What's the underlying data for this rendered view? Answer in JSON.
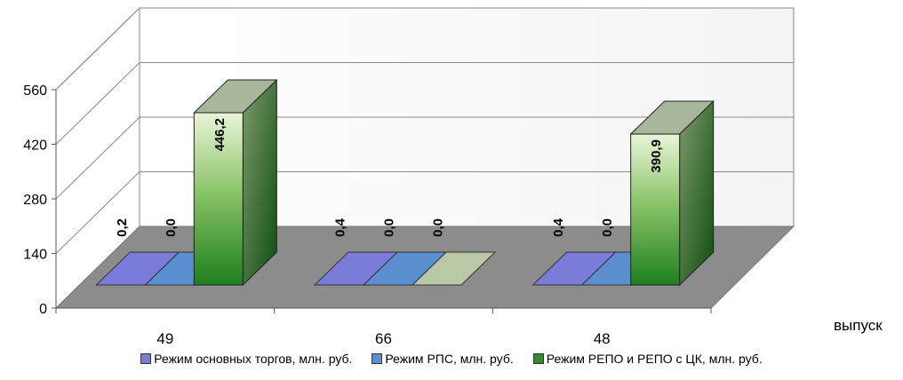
{
  "chart_data": {
    "type": "bar",
    "three_d": true,
    "categories": [
      "49",
      "66",
      "48"
    ],
    "series": [
      {
        "name": "Режим основных торгов, млн. руб.",
        "values": [
          0.2,
          0.4,
          0.4
        ],
        "labels": [
          "0,2",
          "0,4",
          "0,4"
        ],
        "color": "#7b7bd9"
      },
      {
        "name": "Режим РПС, млн. руб.",
        "values": [
          0.0,
          0.0,
          0.0
        ],
        "labels": [
          "0,0",
          "0,0",
          "0,0"
        ],
        "color": "#5b8fd0"
      },
      {
        "name": "Режим РЕПО и РЕПО с ЦК, млн. руб.",
        "values": [
          446.2,
          0.0,
          390.9
        ],
        "labels": [
          "446,2",
          "0,0",
          "390,9"
        ],
        "color": "#2e8b2e"
      }
    ],
    "xlabel": "выпуск",
    "ylabel": "",
    "title": "",
    "ylim": [
      0,
      560
    ],
    "yticks": [
      "0",
      "140",
      "280",
      "420",
      "560"
    ],
    "grid": true,
    "legend_position": "bottom"
  }
}
